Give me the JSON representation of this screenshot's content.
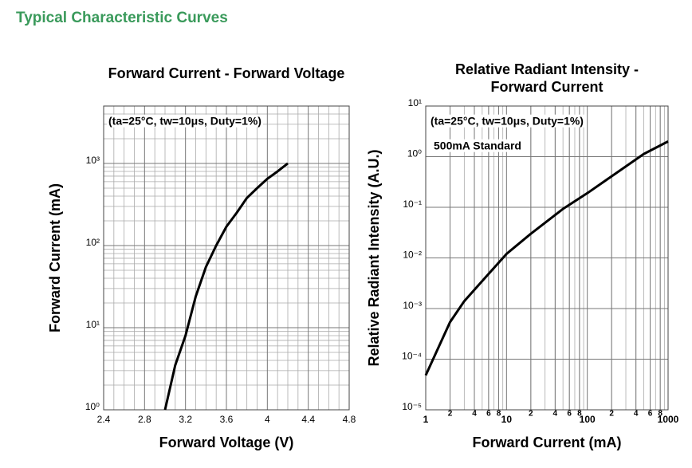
{
  "header": {
    "title": "Typical Characteristic Curves"
  },
  "chart_data": [
    {
      "type": "line",
      "title": "Forward Current - Forward Voltage",
      "x_label": "Forward Voltage (V)",
      "y_label": "Forward Current (mA)",
      "annotations": [
        "(ta=25°C, tw=10μs, Duty=1%)"
      ],
      "xscale": "linear",
      "yscale": "log",
      "xlim": [
        2.4,
        4.8
      ],
      "ylim": [
        1,
        5000
      ],
      "xticks": [
        2.4,
        2.8,
        3.2,
        3.6,
        4.0,
        4.4,
        4.8
      ],
      "yticks": [
        {
          "value": 1,
          "label": "10⁰"
        },
        {
          "value": 10,
          "label": "10¹"
        },
        {
          "value": 100,
          "label": "10²"
        },
        {
          "value": 1000,
          "label": "10³"
        }
      ],
      "x_minor_grid": [
        2.5,
        2.6,
        2.7,
        2.9,
        3.0,
        3.1,
        3.3,
        3.4,
        3.5,
        3.7,
        3.8,
        3.9,
        4.1,
        4.2,
        4.3,
        4.5,
        4.6,
        4.7
      ],
      "y_minor_grid": [
        2,
        3,
        4,
        5,
        6,
        7,
        8,
        9,
        20,
        30,
        40,
        50,
        60,
        70,
        80,
        90,
        200,
        300,
        400,
        500,
        600,
        700,
        800,
        900,
        2000,
        3000,
        4000,
        5000
      ],
      "grid": true,
      "color": "#000000",
      "x": [
        3.0,
        3.1,
        3.2,
        3.3,
        3.4,
        3.5,
        3.6,
        3.7,
        3.8,
        3.9,
        4.0,
        4.1,
        4.2
      ],
      "values": [
        1,
        3.5,
        8,
        24,
        55,
        100,
        170,
        250,
        380,
        500,
        650,
        800,
        1000
      ]
    },
    {
      "type": "line",
      "title": [
        "Relative Radiant Intensity -",
        "Forward Current"
      ],
      "x_label": "Forward Current (mA)",
      "y_label": "Relative Radiant Intensity (A.U.)",
      "annotations": [
        "(ta=25°C, tw=10μs, Duty=1%)",
        "500mA Standard"
      ],
      "xscale": "log",
      "yscale": "log",
      "xlim": [
        1,
        1000
      ],
      "ylim": [
        1e-05,
        10
      ],
      "xticks": [
        1,
        2,
        4,
        6,
        8,
        10,
        {
          "value": 20,
          "label": "2"
        },
        {
          "value": 40,
          "label": "4"
        },
        {
          "value": 60,
          "label": "6"
        },
        {
          "value": 80,
          "label": "8"
        },
        100,
        {
          "value": 200,
          "label": "2"
        },
        {
          "value": 400,
          "label": "4"
        },
        {
          "value": 600,
          "label": "6"
        },
        {
          "value": 800,
          "label": "8"
        },
        1000
      ],
      "yticks": [
        {
          "value": 1e-05,
          "label": "10⁻⁵"
        },
        {
          "value": 0.0001,
          "label": "10⁻⁴"
        },
        {
          "value": 0.001,
          "label": "10⁻³"
        },
        {
          "value": 0.01,
          "label": "10⁻²"
        },
        {
          "value": 0.1,
          "label": "10⁻¹"
        },
        {
          "value": 1,
          "label": "10⁰"
        },
        {
          "value": 10,
          "label": "10¹"
        }
      ],
      "x_minor_grid": [
        2,
        3,
        4,
        5,
        6,
        7,
        8,
        9,
        20,
        30,
        40,
        50,
        60,
        70,
        80,
        90,
        200,
        300,
        400,
        500,
        600,
        700,
        800,
        900
      ],
      "y_minor_grid": [],
      "grid": true,
      "color": "#000000",
      "x": [
        1,
        2,
        3,
        5,
        10,
        20,
        50,
        100,
        200,
        500,
        1000
      ],
      "values": [
        4.8e-05,
        0.00054,
        0.0014,
        0.0035,
        0.012,
        0.03,
        0.093,
        0.19,
        0.41,
        1.13,
        2.0
      ]
    }
  ]
}
